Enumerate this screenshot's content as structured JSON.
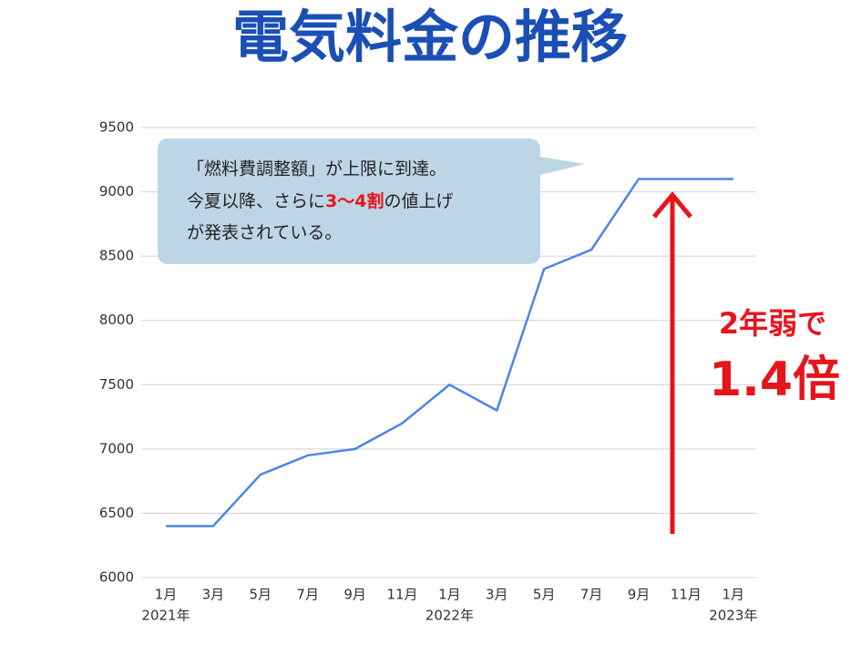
{
  "chart_data": {
    "type": "line",
    "title": "電気料金の推移",
    "categories": [
      "1月",
      "3月",
      "5月",
      "7月",
      "9月",
      "11月",
      "1月",
      "3月",
      "5月",
      "7月",
      "9月",
      "11月",
      "1月"
    ],
    "x_year_labels": [
      "2021年",
      null,
      null,
      null,
      null,
      null,
      "2022年",
      null,
      null,
      null,
      null,
      null,
      "2023年"
    ],
    "series": [
      {
        "color": "#4a86e8",
        "values": [
          6400,
          6400,
          6800,
          6950,
          7000,
          7200,
          7500,
          7300,
          8400,
          8550,
          9100,
          9100,
          9100
        ]
      }
    ],
    "ylim": [
      6000,
      9500
    ],
    "yticks": [
      6000,
      6500,
      7000,
      7500,
      8000,
      8500,
      9000,
      9500
    ],
    "grid": true,
    "callout": {
      "line1": "「燃料費調整額」が上限に到達。",
      "line2_before": "今夏以降、さらに",
      "line2_highlight": "3〜4割",
      "line2_after": "の値上げ",
      "line3": "が発表されている。"
    },
    "annotation": {
      "line1": "2年弱で",
      "line2": "1.4倍",
      "color": "#e8141b"
    }
  }
}
